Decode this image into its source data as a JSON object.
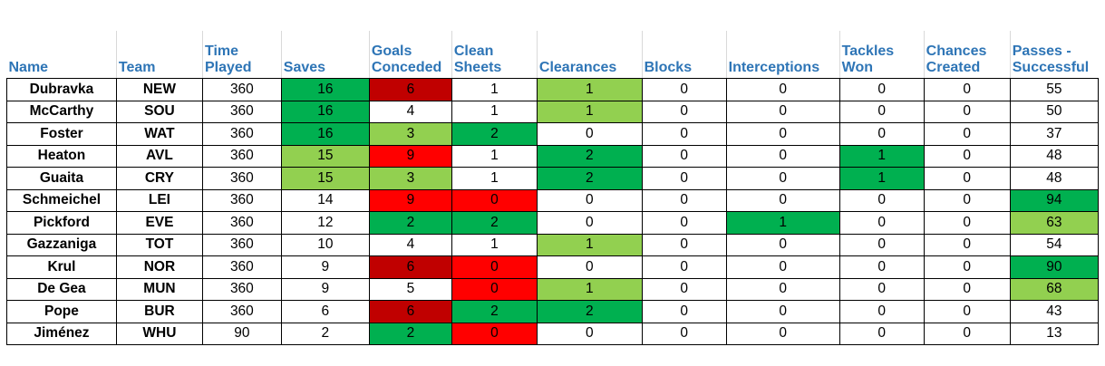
{
  "columns": [
    "Name",
    "Team",
    "Time Played",
    "Saves",
    "Goals Conceded",
    "Clean Sheets",
    "Clearances",
    "Blocks",
    "Interceptions",
    "Tackles Won",
    "Chances Created",
    "Passes - Successful"
  ],
  "header_lines": [
    [
      "Name"
    ],
    [
      "Team"
    ],
    [
      "Time",
      "Played"
    ],
    [
      "Saves"
    ],
    [
      "Goals",
      "Conceded"
    ],
    [
      "Clean",
      "Sheets"
    ],
    [
      "Clearances"
    ],
    [
      "Blocks"
    ],
    [
      "Interceptions"
    ],
    [
      "Tackles",
      "Won"
    ],
    [
      "Chances",
      "Created"
    ],
    [
      "Passes -",
      "Successful"
    ]
  ],
  "colors": {
    "dark_green": "#00b050",
    "light_green": "#92d050",
    "dark_red": "#c00000",
    "red": "#ff0000",
    "header_text": "#2e75b6"
  },
  "rows": [
    {
      "name": "Dubravka",
      "team": "NEW",
      "time_played": "360",
      "saves": "16",
      "goals_conceded": "6",
      "clean_sheets": "1",
      "clearances": "1",
      "blocks": "0",
      "interceptions": "0",
      "tackles_won": "0",
      "chances_created": "0",
      "passes_successful": "55"
    },
    {
      "name": "McCarthy",
      "team": "SOU",
      "time_played": "360",
      "saves": "16",
      "goals_conceded": "4",
      "clean_sheets": "1",
      "clearances": "1",
      "blocks": "0",
      "interceptions": "0",
      "tackles_won": "0",
      "chances_created": "0",
      "passes_successful": "50"
    },
    {
      "name": "Foster",
      "team": "WAT",
      "time_played": "360",
      "saves": "16",
      "goals_conceded": "3",
      "clean_sheets": "2",
      "clearances": "0",
      "blocks": "0",
      "interceptions": "0",
      "tackles_won": "0",
      "chances_created": "0",
      "passes_successful": "37"
    },
    {
      "name": "Heaton",
      "team": "AVL",
      "time_played": "360",
      "saves": "15",
      "goals_conceded": "9",
      "clean_sheets": "1",
      "clearances": "2",
      "blocks": "0",
      "interceptions": "0",
      "tackles_won": "1",
      "chances_created": "0",
      "passes_successful": "48"
    },
    {
      "name": "Guaita",
      "team": "CRY",
      "time_played": "360",
      "saves": "15",
      "goals_conceded": "3",
      "clean_sheets": "1",
      "clearances": "2",
      "blocks": "0",
      "interceptions": "0",
      "tackles_won": "1",
      "chances_created": "0",
      "passes_successful": "48"
    },
    {
      "name": "Schmeichel",
      "team": "LEI",
      "time_played": "360",
      "saves": "14",
      "goals_conceded": "9",
      "clean_sheets": "0",
      "clearances": "0",
      "blocks": "0",
      "interceptions": "0",
      "tackles_won": "0",
      "chances_created": "0",
      "passes_successful": "94"
    },
    {
      "name": "Pickford",
      "team": "EVE",
      "time_played": "360",
      "saves": "12",
      "goals_conceded": "2",
      "clean_sheets": "2",
      "clearances": "0",
      "blocks": "0",
      "interceptions": "1",
      "tackles_won": "0",
      "chances_created": "0",
      "passes_successful": "63"
    },
    {
      "name": "Gazzaniga",
      "team": "TOT",
      "time_played": "360",
      "saves": "10",
      "goals_conceded": "4",
      "clean_sheets": "1",
      "clearances": "1",
      "blocks": "0",
      "interceptions": "0",
      "tackles_won": "0",
      "chances_created": "0",
      "passes_successful": "54"
    },
    {
      "name": "Krul",
      "team": "NOR",
      "time_played": "360",
      "saves": "9",
      "goals_conceded": "6",
      "clean_sheets": "0",
      "clearances": "0",
      "blocks": "0",
      "interceptions": "0",
      "tackles_won": "0",
      "chances_created": "0",
      "passes_successful": "90"
    },
    {
      "name": "De Gea",
      "team": "MUN",
      "time_played": "360",
      "saves": "9",
      "goals_conceded": "5",
      "clean_sheets": "0",
      "clearances": "1",
      "blocks": "0",
      "interceptions": "0",
      "tackles_won": "0",
      "chances_created": "0",
      "passes_successful": "68"
    },
    {
      "name": "Pope",
      "team": "BUR",
      "time_played": "360",
      "saves": "6",
      "goals_conceded": "6",
      "clean_sheets": "2",
      "clearances": "2",
      "blocks": "0",
      "interceptions": "0",
      "tackles_won": "0",
      "chances_created": "0",
      "passes_successful": "43"
    },
    {
      "name": "Jiménez",
      "team": "WHU",
      "time_played": "90",
      "saves": "2",
      "goals_conceded": "2",
      "clean_sheets": "0",
      "clearances": "0",
      "blocks": "0",
      "interceptions": "0",
      "tackles_won": "0",
      "chances_created": "0",
      "passes_successful": "13"
    }
  ],
  "highlights": [
    {
      "saves": "dark_green",
      "goals_conceded": "dark_red",
      "clearances": "light_green"
    },
    {
      "saves": "dark_green",
      "clearances": "light_green"
    },
    {
      "saves": "dark_green",
      "goals_conceded": "light_green",
      "clean_sheets": "dark_green"
    },
    {
      "saves": "light_green",
      "goals_conceded": "red",
      "clearances": "dark_green",
      "tackles_won": "dark_green"
    },
    {
      "saves": "light_green",
      "goals_conceded": "light_green",
      "clearances": "dark_green",
      "tackles_won": "dark_green"
    },
    {
      "goals_conceded": "red",
      "clean_sheets": "red",
      "passes_successful": "dark_green"
    },
    {
      "goals_conceded": "dark_green",
      "clean_sheets": "dark_green",
      "interceptions": "dark_green",
      "passes_successful": "light_green"
    },
    {
      "clearances": "light_green"
    },
    {
      "goals_conceded": "dark_red",
      "clean_sheets": "red",
      "passes_successful": "dark_green"
    },
    {
      "clean_sheets": "red",
      "clearances": "light_green",
      "passes_successful": "light_green"
    },
    {
      "goals_conceded": "dark_red",
      "clean_sheets": "dark_green",
      "clearances": "dark_green"
    },
    {
      "goals_conceded": "dark_green",
      "clean_sheets": "red"
    }
  ]
}
